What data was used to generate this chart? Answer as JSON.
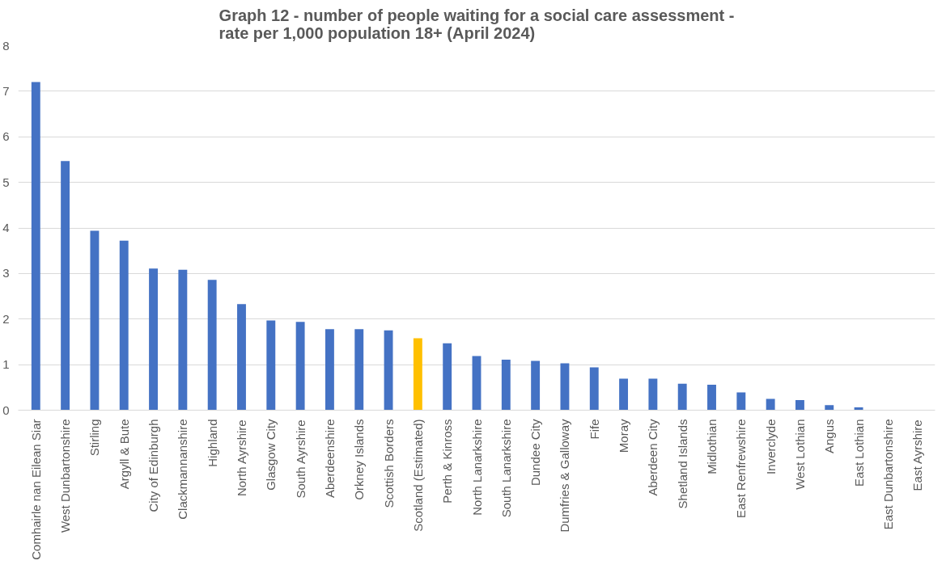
{
  "chart_data": {
    "type": "bar",
    "title": "Graph 12 - number of people waiting for a social care assessment - rate per 1,000 population 18+ (April 2024)",
    "categories": [
      "Comhairle nan Eilean Siar",
      "West Dunbartonshire",
      "Stirling",
      "Argyll & Bute",
      "City of Edinburgh",
      "Clackmannanshire",
      "Highland",
      "North Ayrshire",
      "Glasgow City",
      "South Ayrshire",
      "Aberdeenshire",
      "Orkney Islands",
      "Scottish Borders",
      "Scotland (Estimated)",
      "Perth & Kinross",
      "North Lanarkshire",
      "South Lanarkshire",
      "Dundee City",
      "Dumfries & Galloway",
      "Fife",
      "Moray",
      "Aberdeen City",
      "Shetland Islands",
      "Midlothian",
      "East Renfrewshire",
      "Inverclyde",
      "West Lothian",
      "Angus",
      "East Lothian",
      "East Dunbartonshire",
      "East Ayrshire"
    ],
    "values": [
      7.2,
      5.47,
      3.94,
      3.72,
      3.11,
      3.08,
      2.86,
      2.33,
      1.97,
      1.94,
      1.78,
      1.78,
      1.75,
      1.58,
      1.47,
      1.19,
      1.11,
      1.08,
      1.03,
      0.94,
      0.69,
      0.69,
      0.58,
      0.56,
      0.39,
      0.25,
      0.22,
      0.11,
      0.06,
      0,
      0
    ],
    "colors": [
      "#4472c4",
      "#4472c4",
      "#4472c4",
      "#4472c4",
      "#4472c4",
      "#4472c4",
      "#4472c4",
      "#4472c4",
      "#4472c4",
      "#4472c4",
      "#4472c4",
      "#4472c4",
      "#4472c4",
      "#ffc000",
      "#4472c4",
      "#4472c4",
      "#4472c4",
      "#4472c4",
      "#4472c4",
      "#4472c4",
      "#4472c4",
      "#4472c4",
      "#4472c4",
      "#4472c4",
      "#4472c4",
      "#4472c4",
      "#4472c4",
      "#4472c4",
      "#4472c4",
      "#4472c4",
      "#4472c4"
    ],
    "ylim": [
      0,
      8
    ],
    "yticks": [
      0,
      1,
      2,
      3,
      4,
      5,
      6,
      7,
      8
    ],
    "grid": "y"
  }
}
